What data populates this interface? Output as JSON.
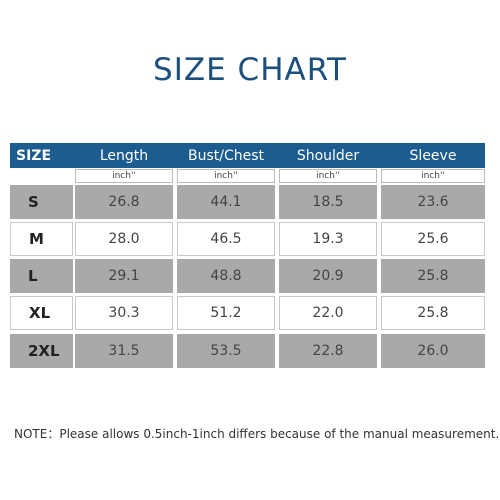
{
  "header": {
    "title": "SIZE CHART"
  },
  "table": {
    "columns": [
      "SIZE",
      "Length",
      "Bust/Chest",
      "Shoulder",
      "Sleeve"
    ],
    "units": [
      "inch''",
      "inch''",
      "inch''",
      "inch''"
    ],
    "rows": [
      [
        "S",
        "26.8",
        "44.1",
        "18.5",
        "23.6"
      ],
      [
        "M",
        "28.0",
        "46.5",
        "19.3",
        "25.6"
      ],
      [
        "L",
        "29.1",
        "48.8",
        "20.9",
        "25.8"
      ],
      [
        "XL",
        "30.3",
        "51.2",
        "22.0",
        "25.8"
      ],
      [
        "2XL",
        "31.5",
        "53.5",
        "22.8",
        "26.0"
      ]
    ]
  },
  "note": "NOTE：Please allows 0.5inch-1inch differs because of the manual measurement."
}
